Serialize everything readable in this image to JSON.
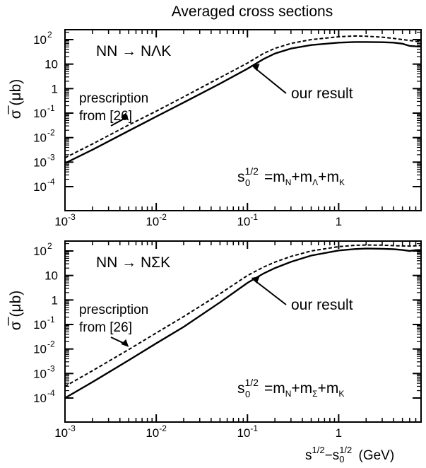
{
  "title": "Averaged cross sections",
  "chart_data": [
    {
      "type": "line",
      "reaction": "NN → NΛK",
      "ylabel": "σ̅ (μb)",
      "xlabel": "",
      "xscale": "log",
      "yscale": "log",
      "xlim": [
        0.001,
        8
      ],
      "ylim": [
        0.0001,
        400
      ],
      "xticks": [
        {
          "v": 0.001,
          "base": "10",
          "exp": "-3"
        },
        {
          "v": 0.01,
          "base": "10",
          "exp": "-2"
        },
        {
          "v": 0.1,
          "base": "10",
          "exp": "-1"
        },
        {
          "v": 1,
          "base": "1",
          "exp": ""
        }
      ],
      "yticks": [
        {
          "v": 0.0001,
          "base": "10",
          "exp": "-4"
        },
        {
          "v": 0.001,
          "base": "10",
          "exp": "-3"
        },
        {
          "v": 0.01,
          "base": "10",
          "exp": "-2"
        },
        {
          "v": 0.1,
          "base": "10",
          "exp": "-1"
        },
        {
          "v": 1,
          "base": "1",
          "exp": ""
        },
        {
          "v": 10,
          "base": "10",
          "exp": ""
        },
        {
          "v": 100,
          "base": "10",
          "exp": "2"
        }
      ],
      "series": [
        {
          "label": "our result",
          "style": "solid",
          "x": [
            0.001,
            0.002,
            0.005,
            0.01,
            0.02,
            0.05,
            0.1,
            0.15,
            0.2,
            0.3,
            0.5,
            1,
            1.5,
            2,
            3,
            4,
            5,
            6,
            7,
            8
          ],
          "y": [
            0.0009,
            0.0032,
            0.019,
            0.072,
            0.27,
            1.6,
            6.5,
            16,
            27,
            43,
            60,
            75,
            80,
            80,
            78,
            75,
            68,
            55,
            53,
            52
          ]
        },
        {
          "label": "prescription from [26]",
          "style": "dashed",
          "x": [
            0.001,
            0.002,
            0.005,
            0.01,
            0.02,
            0.05,
            0.1,
            0.15,
            0.2,
            0.3,
            0.5,
            1,
            1.5,
            2,
            3,
            4,
            5,
            6,
            7,
            8
          ],
          "y": [
            0.0015,
            0.0055,
            0.033,
            0.12,
            0.46,
            2.8,
            11,
            27,
            44,
            70,
            100,
            130,
            140,
            138,
            125,
            112,
            100,
            92,
            85,
            80
          ]
        }
      ],
      "annotations": {
        "our_result": "our result",
        "prescription_line1": "prescription",
        "prescription_line2": "from [26]",
        "threshold_lhs": "s",
        "threshold_sub0": "0",
        "threshold_exp": "1/2",
        "threshold_rhs": "=m",
        "threshold_sub1": "N",
        "threshold_plus1": "+m",
        "threshold_sub2": "Λ",
        "threshold_plus2": "+m",
        "threshold_sub3": "K"
      }
    },
    {
      "type": "line",
      "reaction": "NN → NΣK",
      "ylabel": "σ̅ (μb)",
      "xlabel": "s¹ᐟ²−s₀¹ᐟ² (GeV)",
      "xscale": "log",
      "yscale": "log",
      "xlim": [
        0.001,
        8
      ],
      "ylim": [
        0.0001,
        400
      ],
      "xticks": [
        {
          "v": 0.001,
          "base": "10",
          "exp": "-3"
        },
        {
          "v": 0.01,
          "base": "10",
          "exp": "-2"
        },
        {
          "v": 0.1,
          "base": "10",
          "exp": "-1"
        },
        {
          "v": 1,
          "base": "1",
          "exp": ""
        }
      ],
      "yticks": [
        {
          "v": 0.0001,
          "base": "10",
          "exp": "-4"
        },
        {
          "v": 0.001,
          "base": "10",
          "exp": "-3"
        },
        {
          "v": 0.01,
          "base": "10",
          "exp": "-2"
        },
        {
          "v": 0.1,
          "base": "10",
          "exp": "-1"
        },
        {
          "v": 1,
          "base": "1",
          "exp": ""
        },
        {
          "v": 10,
          "base": "10",
          "exp": ""
        },
        {
          "v": 100,
          "base": "10",
          "exp": "2"
        }
      ],
      "series": [
        {
          "label": "our result",
          "style": "solid",
          "x": [
            0.001,
            0.002,
            0.005,
            0.01,
            0.02,
            0.05,
            0.1,
            0.15,
            0.2,
            0.3,
            0.5,
            1,
            1.5,
            2,
            3,
            4,
            5,
            6,
            7,
            8
          ],
          "y": [
            0.0001,
            0.00045,
            0.0035,
            0.017,
            0.08,
            0.8,
            5,
            12,
            20,
            36,
            65,
            105,
            120,
            125,
            123,
            118,
            110,
            100,
            108,
            110
          ]
        },
        {
          "label": "prescription from [26]",
          "style": "dashed",
          "x": [
            0.001,
            0.002,
            0.005,
            0.01,
            0.02,
            0.05,
            0.1,
            0.15,
            0.2,
            0.3,
            0.5,
            1,
            1.5,
            2,
            3,
            4,
            5,
            6,
            7,
            8
          ],
          "y": [
            0.0003,
            0.0013,
            0.0095,
            0.045,
            0.21,
            1.8,
            10,
            22,
            35,
            60,
            100,
            150,
            170,
            175,
            172,
            165,
            160,
            158,
            162,
            168
          ]
        }
      ],
      "annotations": {
        "our_result": "our result",
        "prescription_line1": "prescription",
        "prescription_line2": "from [26]",
        "threshold_lhs": "s",
        "threshold_sub0": "0",
        "threshold_exp": "1/2",
        "threshold_rhs": "=m",
        "threshold_sub1": "N",
        "threshold_plus1": "+m",
        "threshold_sub2": "Σ",
        "threshold_plus2": "+m",
        "threshold_sub3": "K"
      }
    }
  ],
  "xaxis_label": {
    "s": "s",
    "exp1": "1/2",
    "minus": "−s",
    "sub0": "0",
    "exp2": "1/2",
    "unit": "(GeV)"
  }
}
